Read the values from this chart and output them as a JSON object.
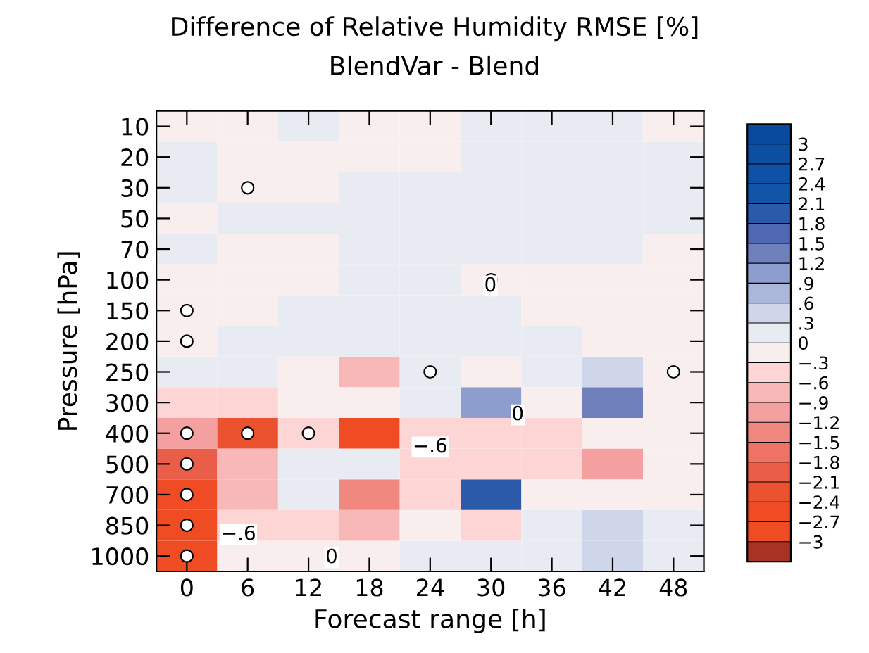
{
  "chart_data": {
    "type": "heatmap",
    "title": "Difference of Relative Humidity RMSE [%]",
    "subtitle": "BlendVar - Blend",
    "xlabel": "Forecast range [h]",
    "ylabel": "Pressure [hPa]",
    "categories": [
      "0",
      "6",
      "12",
      "18",
      "24",
      "30",
      "36",
      "42",
      "48"
    ],
    "y_categories": [
      "10",
      "20",
      "30",
      "50",
      "70",
      "100",
      "150",
      "200",
      "250",
      "300",
      "400",
      "500",
      "700",
      "850",
      "1000"
    ],
    "cells": [
      [
        -0.1,
        -0.1,
        0.1,
        -0.1,
        -0.1,
        0.1,
        0.1,
        0.1,
        -0.1
      ],
      [
        0.1,
        -0.1,
        -0.1,
        -0.1,
        -0.1,
        0.1,
        0.1,
        0.1,
        0.1
      ],
      [
        0.1,
        -0.1,
        -0.1,
        0.1,
        0.1,
        0.1,
        0.1,
        0.1,
        0.1
      ],
      [
        -0.1,
        0.1,
        0.1,
        0.1,
        0.1,
        0.1,
        0.1,
        0.1,
        0.1
      ],
      [
        0.1,
        -0.1,
        -0.1,
        0.1,
        0.1,
        0.1,
        0.1,
        0.1,
        -0.1
      ],
      [
        -0.1,
        -0.1,
        -0.1,
        0.1,
        0.1,
        -0.1,
        -0.1,
        -0.1,
        -0.1
      ],
      [
        -0.1,
        -0.1,
        0.1,
        0.1,
        0.1,
        0.1,
        -0.1,
        -0.1,
        -0.1
      ],
      [
        -0.1,
        0.1,
        0.1,
        0.1,
        0.1,
        0.1,
        0.1,
        -0.1,
        -0.1
      ],
      [
        0.1,
        0.1,
        -0.1,
        -0.7,
        0.1,
        -0.1,
        0.1,
        0.4,
        -0.1
      ],
      [
        -0.4,
        -0.4,
        -0.1,
        -0.2,
        0.1,
        1.0,
        -0.1,
        1.3,
        -0.1
      ],
      [
        -1.0,
        -2.3,
        -0.5,
        -2.9,
        -0.5,
        -0.5,
        -0.5,
        -0.2,
        -0.2
      ],
      [
        -2.0,
        -0.8,
        0.1,
        0.1,
        -0.4,
        -0.5,
        -0.4,
        -1.0,
        -0.2
      ],
      [
        -2.5,
        -0.7,
        0.1,
        -1.3,
        -0.4,
        1.9,
        -0.1,
        -0.1,
        -0.1
      ],
      [
        -2.8,
        -0.5,
        -0.4,
        -0.7,
        -0.1,
        -0.4,
        0.1,
        0.4,
        0.1
      ],
      [
        -2.9,
        -0.2,
        -0.1,
        -0.1,
        0.1,
        0.1,
        0.2,
        0.5,
        0.2
      ]
    ],
    "clim": [
      -3.3,
      3.3
    ],
    "cticks": [
      {
        "value": -3,
        "label": "−3"
      },
      {
        "value": -2.7,
        "label": "−2.7"
      },
      {
        "value": -2.4,
        "label": "−2.4"
      },
      {
        "value": -2.1,
        "label": "−2.1"
      },
      {
        "value": -1.8,
        "label": "−1.8"
      },
      {
        "value": -1.5,
        "label": "−1.5"
      },
      {
        "value": -1.2,
        "label": "−1.2"
      },
      {
        "value": -0.9,
        "label": "−.9"
      },
      {
        "value": -0.6,
        "label": "−.6"
      },
      {
        "value": -0.3,
        "label": "−.3"
      },
      0,
      {
        "value": 0.3,
        "label": ".3"
      },
      {
        "value": 0.6,
        "label": ".6"
      },
      {
        "value": 0.9,
        "label": ".9"
      },
      1.2,
      1.5,
      1.8,
      2.1,
      2.4,
      2.7,
      3
    ],
    "colors": [
      "#a83224",
      "#f04c24",
      "#ef4b25",
      "#ea5230",
      "#ea5d48",
      "#ee7365",
      "#f08880",
      "#f5a0a0",
      "#f8b8b8",
      "#fdd5d5",
      "#f8eeee",
      "#e9ebf2",
      "#cfd6ea",
      "#aab6da",
      "#8d9dcd",
      "#6f80bd",
      "#5068b3",
      "#2b5aab",
      "#1055a8",
      "#0d52a6",
      "#0b4ea2",
      "#0a4a9e"
    ],
    "annotations": [
      "0",
      "0",
      "0",
      "−.6",
      "−.6"
    ],
    "grid": false
  }
}
